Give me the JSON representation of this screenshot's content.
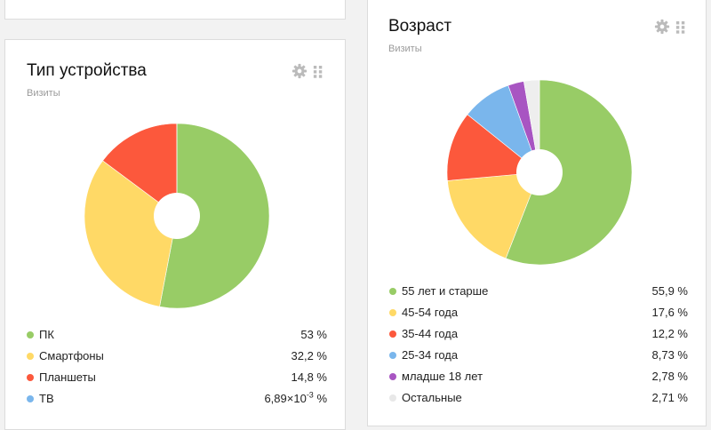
{
  "device": {
    "title": "Тип устройства",
    "subtitle": "Визиты",
    "settings_icon": "gear-icon",
    "drag_icon": "drag-handle-icon",
    "legend": [
      {
        "label": "ПК",
        "value": "53 %",
        "color": "#98cc66"
      },
      {
        "label": "Смартфоны",
        "value": "32,2 %",
        "color": "#ffd966"
      },
      {
        "label": "Планшеты",
        "value": "14,8 %",
        "color": "#fc583c"
      },
      {
        "label": "ТВ",
        "value": "6,89×10",
        "exponent": "-3",
        "unit": " %",
        "color": "#7ab6ec"
      }
    ]
  },
  "age": {
    "title": "Возраст",
    "subtitle": "Визиты",
    "settings_icon": "gear-icon",
    "drag_icon": "drag-handle-icon",
    "legend": [
      {
        "label": "55 лет и старше",
        "value": "55,9 %",
        "color": "#98cc66"
      },
      {
        "label": "45-54 года",
        "value": "17,6 %",
        "color": "#ffd966"
      },
      {
        "label": "35-44 года",
        "value": "12,2 %",
        "color": "#fc583c"
      },
      {
        "label": "25-34 года",
        "value": "8,73 %",
        "color": "#7ab6ec"
      },
      {
        "label": "младше 18 лет",
        "value": "2,78 %",
        "color": "#a855c2"
      },
      {
        "label": "Остальные",
        "value": "2,71 %",
        "color": "#eeeeee"
      }
    ]
  },
  "chart_data": [
    {
      "type": "pie",
      "categories": [
        "ПК",
        "Смартфоны",
        "Планшеты",
        "ТВ"
      ],
      "values": [
        53,
        32.2,
        14.8,
        0.00689
      ],
      "colors": [
        "#98cc66",
        "#ffd966",
        "#fc583c",
        "#7ab6ec"
      ],
      "title": "Тип устройства",
      "subtitle": "Визиты"
    },
    {
      "type": "pie",
      "categories": [
        "55 лет и старше",
        "45-54 года",
        "35-44 года",
        "25-34 года",
        "младше 18 лет",
        "Остальные"
      ],
      "values": [
        55.9,
        17.6,
        12.2,
        8.73,
        2.78,
        2.71
      ],
      "colors": [
        "#98cc66",
        "#ffd966",
        "#fc583c",
        "#7ab6ec",
        "#a855c2",
        "#eeeeee"
      ],
      "title": "Возраст",
      "subtitle": "Визиты"
    }
  ]
}
